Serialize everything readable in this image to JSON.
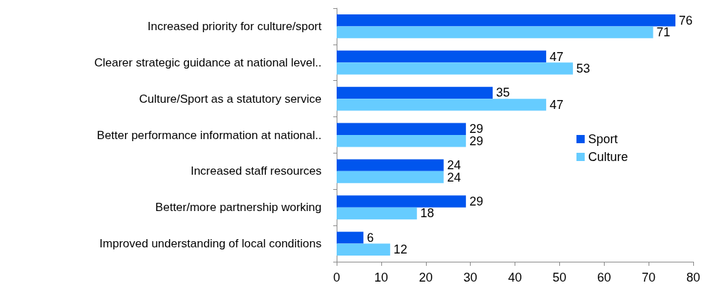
{
  "chart_data": {
    "type": "bar",
    "orientation": "horizontal",
    "categories": [
      "Increased priority for culture/sport",
      "Clearer strategic guidance at national level..",
      "Culture/Sport as a statutory service",
      "Better performance information at national..",
      "Increased staff resources",
      "Better/more partnership working",
      "Improved understanding of local conditions"
    ],
    "series": [
      {
        "name": "Sport",
        "color": "#0055ee",
        "values": [
          76,
          47,
          35,
          29,
          24,
          29,
          6
        ]
      },
      {
        "name": "Culture",
        "color": "#66ccff",
        "values": [
          71,
          53,
          47,
          29,
          24,
          18,
          12
        ]
      }
    ],
    "xlim": [
      0,
      80
    ],
    "xticks": [
      0,
      10,
      20,
      30,
      40,
      50,
      60,
      70,
      80
    ],
    "grid": false,
    "legend": "right",
    "data_labels": true
  }
}
